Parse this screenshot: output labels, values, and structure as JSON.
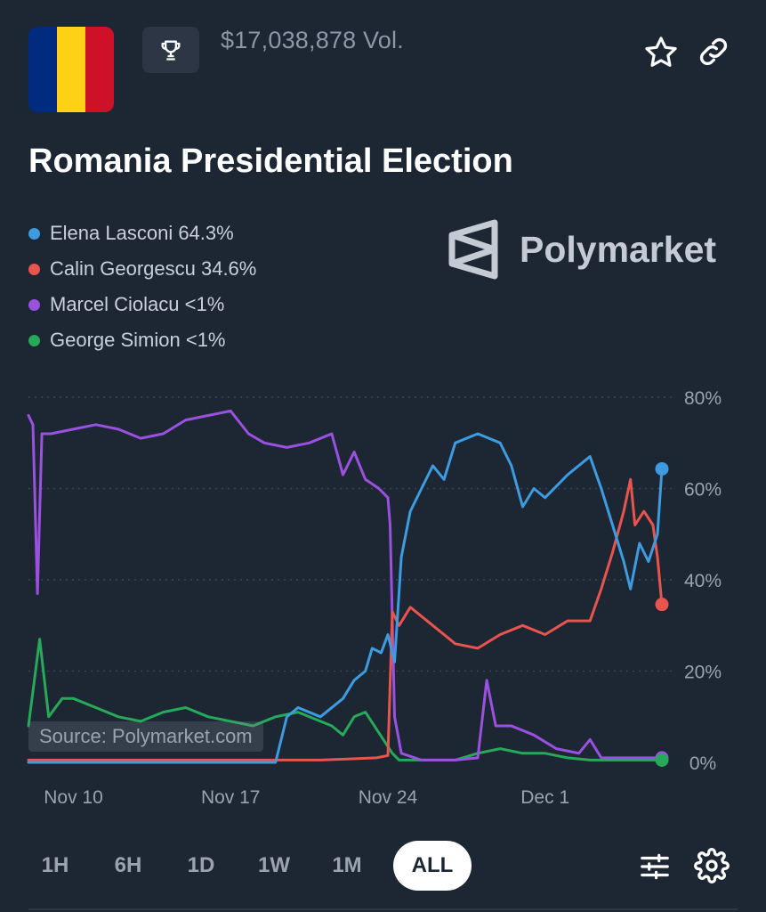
{
  "header": {
    "volume": "$17,038,878 Vol.",
    "title": "Romania Presidential Election",
    "brand": "Polymarket",
    "flag_colors": [
      "#002B7F",
      "#FCD116",
      "#CE1126"
    ]
  },
  "icons": {
    "trophy": "trophy-icon",
    "star": "star-icon",
    "link": "link-icon",
    "filter": "sliders-icon",
    "settings": "gear-icon"
  },
  "legend": [
    {
      "label": "Elena Lasconi 64.3%",
      "color": "#3d9be0"
    },
    {
      "label": "Calin Georgescu 34.6%",
      "color": "#e8544e"
    },
    {
      "label": "Marcel Ciolacu <1%",
      "color": "#9b51e0"
    },
    {
      "label": "George Simion <1%",
      "color": "#27a95a"
    }
  ],
  "source_label": "Source: Polymarket.com",
  "timeframes": [
    "1H",
    "6H",
    "1D",
    "1W",
    "1M",
    "ALL"
  ],
  "active_timeframe": "ALL",
  "chart_data": {
    "type": "line",
    "x_range": [
      "2024-11-08",
      "2024-12-06"
    ],
    "ylim": [
      0,
      80
    ],
    "yticks": [
      "80%",
      "60%",
      "40%",
      "20%",
      "0%"
    ],
    "ytick_values": [
      80,
      60,
      40,
      20,
      0
    ],
    "xticks": [
      {
        "label": "Nov 10",
        "day": 10
      },
      {
        "label": "Nov 17",
        "day": 17
      },
      {
        "label": "Nov 24",
        "day": 24
      },
      {
        "label": "Dec 1",
        "day": 31
      }
    ],
    "grid": true,
    "series": [
      {
        "name": "Elena Lasconi",
        "color": "#3d9be0",
        "points": [
          [
            8,
            0
          ],
          [
            13,
            0
          ],
          [
            17,
            0
          ],
          [
            19,
            0
          ],
          [
            19.5,
            10
          ],
          [
            20,
            12
          ],
          [
            21,
            10
          ],
          [
            22,
            14
          ],
          [
            22.5,
            18
          ],
          [
            23.0,
            20
          ],
          [
            23.3,
            25
          ],
          [
            23.7,
            24
          ],
          [
            24.0,
            28
          ],
          [
            24.3,
            22
          ],
          [
            24.6,
            45
          ],
          [
            25,
            55
          ],
          [
            25.5,
            60
          ],
          [
            26,
            65
          ],
          [
            26.5,
            62
          ],
          [
            27,
            70
          ],
          [
            28,
            72
          ],
          [
            29,
            70
          ],
          [
            29.5,
            65
          ],
          [
            30,
            56
          ],
          [
            30.5,
            60
          ],
          [
            31,
            58
          ],
          [
            32,
            63
          ],
          [
            33,
            67
          ],
          [
            33.5,
            60
          ],
          [
            34,
            52
          ],
          [
            34.5,
            44
          ],
          [
            34.8,
            38
          ],
          [
            35.2,
            48
          ],
          [
            35.6,
            44
          ],
          [
            36.0,
            50
          ],
          [
            36.2,
            64.3
          ]
        ]
      },
      {
        "name": "Calin Georgescu",
        "color": "#e8544e",
        "points": [
          [
            8,
            0.5
          ],
          [
            16,
            0.5
          ],
          [
            21,
            0.5
          ],
          [
            23.5,
            1
          ],
          [
            24.0,
            1.5
          ],
          [
            24.2,
            33
          ],
          [
            24.5,
            30
          ],
          [
            25,
            34
          ],
          [
            26,
            30
          ],
          [
            27,
            26
          ],
          [
            28,
            25
          ],
          [
            29,
            28
          ],
          [
            30,
            30
          ],
          [
            31,
            28
          ],
          [
            32,
            31
          ],
          [
            33,
            31
          ],
          [
            33.5,
            38
          ],
          [
            34.0,
            46
          ],
          [
            34.5,
            55
          ],
          [
            34.8,
            62
          ],
          [
            35.0,
            52
          ],
          [
            35.4,
            55
          ],
          [
            35.8,
            52
          ],
          [
            36.0,
            45
          ],
          [
            36.2,
            34.6
          ]
        ]
      },
      {
        "name": "Marcel Ciolacu",
        "color": "#9b51e0",
        "points": [
          [
            8,
            76
          ],
          [
            8.2,
            74
          ],
          [
            8.4,
            37
          ],
          [
            8.6,
            72
          ],
          [
            9,
            72
          ],
          [
            10,
            73
          ],
          [
            11,
            74
          ],
          [
            12,
            73
          ],
          [
            13,
            71
          ],
          [
            14,
            72
          ],
          [
            15,
            75
          ],
          [
            16,
            76
          ],
          [
            17,
            77
          ],
          [
            17.8,
            72
          ],
          [
            18.5,
            70
          ],
          [
            19.5,
            69
          ],
          [
            20.5,
            70
          ],
          [
            21.5,
            72
          ],
          [
            22,
            63
          ],
          [
            22.5,
            68
          ],
          [
            23,
            62
          ],
          [
            23.6,
            60
          ],
          [
            24.0,
            58
          ],
          [
            24.1,
            52
          ],
          [
            24.3,
            10
          ],
          [
            24.6,
            2
          ],
          [
            25.5,
            0.5
          ],
          [
            27,
            0.5
          ],
          [
            28,
            1
          ],
          [
            28.4,
            18
          ],
          [
            28.8,
            8
          ],
          [
            29.5,
            8
          ],
          [
            30.5,
            6
          ],
          [
            31.5,
            3
          ],
          [
            32.5,
            2
          ],
          [
            33,
            5
          ],
          [
            33.5,
            1
          ],
          [
            36.2,
            1
          ]
        ]
      },
      {
        "name": "George Simion",
        "color": "#27a95a",
        "points": [
          [
            8,
            8
          ],
          [
            8.5,
            27
          ],
          [
            8.9,
            10
          ],
          [
            9.5,
            14
          ],
          [
            10,
            14
          ],
          [
            11,
            12
          ],
          [
            12,
            10
          ],
          [
            13,
            9
          ],
          [
            14,
            11
          ],
          [
            15,
            12
          ],
          [
            16,
            10
          ],
          [
            17,
            9
          ],
          [
            18,
            8
          ],
          [
            19,
            10
          ],
          [
            20,
            11
          ],
          [
            21,
            9
          ],
          [
            21.5,
            8
          ],
          [
            22,
            6
          ],
          [
            22.5,
            10
          ],
          [
            23,
            11
          ],
          [
            23.4,
            8
          ],
          [
            23.8,
            5
          ],
          [
            24.2,
            2
          ],
          [
            24.5,
            0.5
          ],
          [
            26,
            0.5
          ],
          [
            27,
            0.5
          ],
          [
            28,
            2
          ],
          [
            29,
            3
          ],
          [
            30,
            2
          ],
          [
            31,
            2
          ],
          [
            32,
            1
          ],
          [
            33,
            0.5
          ],
          [
            36.2,
            0.5
          ]
        ]
      }
    ]
  }
}
